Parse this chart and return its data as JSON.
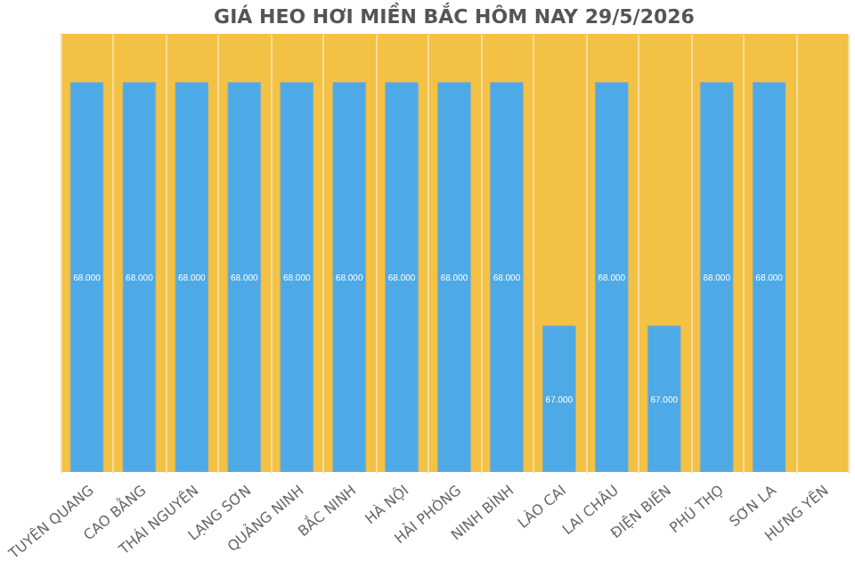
{
  "chart_data": {
    "type": "bar",
    "title": "GIÁ HEO HƠI MIỀN BẮC HÔM NAY 29/5/2026",
    "categories": [
      "TUYÊN QUANG",
      "CAO BẰNG",
      "THÁI NGUYÊN",
      "LẠNG SƠN",
      "QUẢNG NINH",
      "BẮC NINH",
      "HÀ NỘI",
      "HẢI PHÒNG",
      "NINH BÌNH",
      "LÀO CAI",
      "LAI CHÂU",
      "ĐIỆN BIÊN",
      "PHÚ THỌ",
      "SƠN LA",
      "HƯNG YÊN"
    ],
    "values": [
      68000,
      68000,
      68000,
      68000,
      68000,
      68000,
      68000,
      68000,
      68000,
      67000,
      68000,
      67000,
      68000,
      68000,
      null
    ],
    "value_labels": [
      "68.000",
      "68.000",
      "68.000",
      "68.000",
      "68.000",
      "68.000",
      "68.000",
      "68.000",
      "68.000",
      "67.000",
      "68.000",
      "67.000",
      "68.000",
      "68.000",
      null
    ],
    "color": "#4eaae6",
    "ylim": [
      66400,
      68200
    ],
    "tick_labels": "x",
    "grid": "x"
  }
}
